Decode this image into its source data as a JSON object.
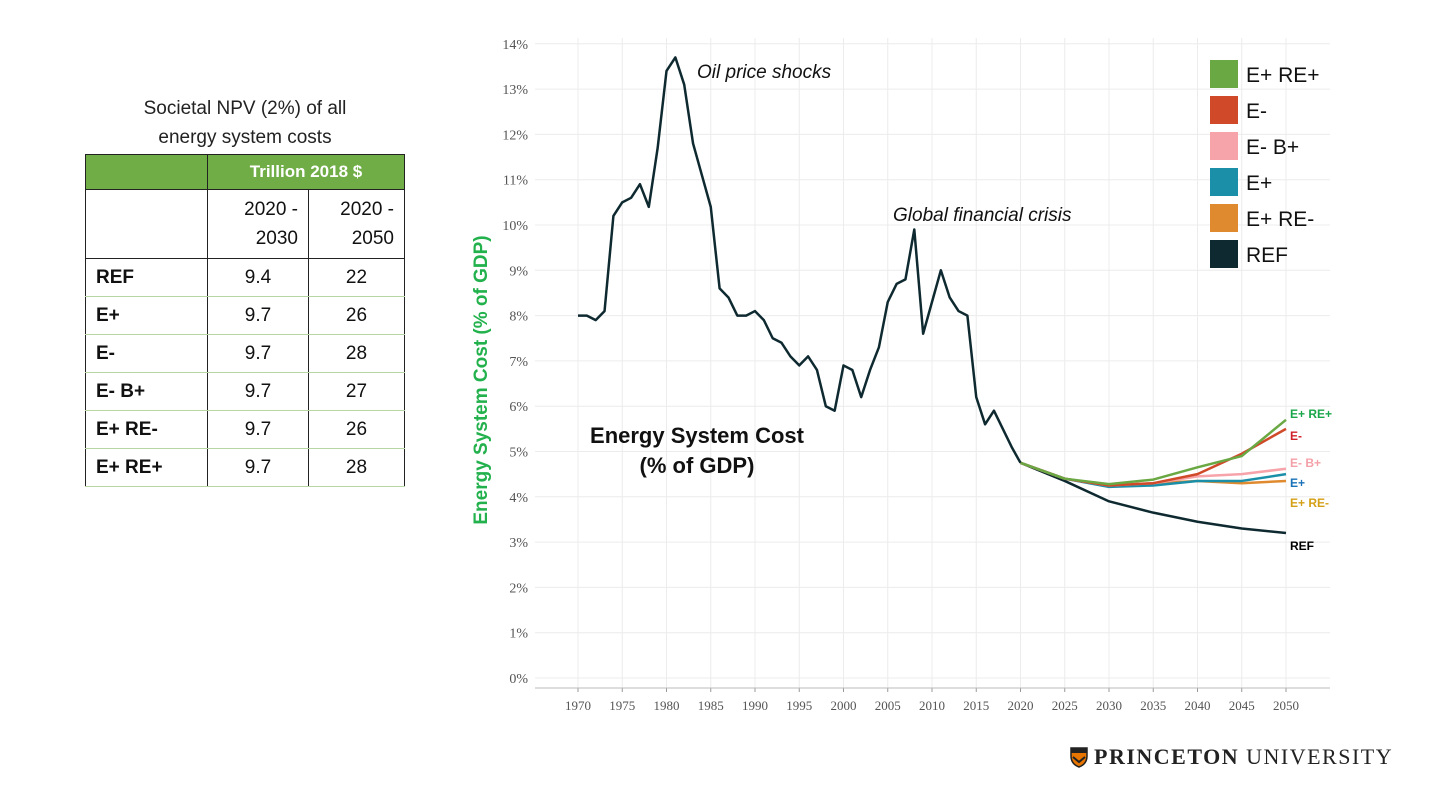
{
  "table": {
    "title_line1": "Societal NPV (2%) of all",
    "title_line2": "energy system costs",
    "unit_header": "Trillion 2018 $",
    "periods": [
      "2020 -\n2030",
      "2020 -\n2050"
    ],
    "rows": [
      {
        "scenario": "REF",
        "v2030": "9.4",
        "v2050": "22"
      },
      {
        "scenario": "E+",
        "v2030": "9.7",
        "v2050": "26"
      },
      {
        "scenario": "E-",
        "v2030": "9.7",
        "v2050": "28"
      },
      {
        "scenario": "E- B+",
        "v2030": "9.7",
        "v2050": "27"
      },
      {
        "scenario": "E+ RE-",
        "v2030": "9.7",
        "v2050": "26"
      },
      {
        "scenario": "E+ RE+",
        "v2030": "9.7",
        "v2050": "28"
      }
    ],
    "header_color": "#70ad47"
  },
  "chart_data": {
    "type": "line",
    "ylabel": "Energy System Cost (% of GDP)",
    "inner_title": "Energy System Cost\n(% of GDP)",
    "annotations": [
      {
        "text": "Oil price shocks",
        "x": 1981,
        "y": 13.7
      },
      {
        "text": "Global financial crisis",
        "x": 2008,
        "y": 9.9
      }
    ],
    "xlim": [
      1965,
      2055
    ],
    "ylim": [
      0,
      14
    ],
    "x_ticks": [
      1970,
      1975,
      1980,
      1985,
      1990,
      1995,
      2000,
      2005,
      2010,
      2015,
      2020,
      2025,
      2030,
      2035,
      2040,
      2045,
      2050
    ],
    "y_ticks": [
      "0%",
      "1%",
      "2%",
      "3%",
      "4%",
      "5%",
      "6%",
      "7%",
      "8%",
      "9%",
      "10%",
      "11%",
      "12%",
      "13%",
      "14%"
    ],
    "grid": true,
    "legend_position": "top-right",
    "history": {
      "x": [
        1970,
        1971,
        1972,
        1973,
        1974,
        1975,
        1976,
        1977,
        1978,
        1979,
        1980,
        1981,
        1982,
        1983,
        1984,
        1985,
        1986,
        1987,
        1988,
        1989,
        1990,
        1991,
        1992,
        1993,
        1994,
        1995,
        1996,
        1997,
        1998,
        1999,
        2000,
        2001,
        2002,
        2003,
        2004,
        2005,
        2006,
        2007,
        2008,
        2009,
        2010,
        2011,
        2012,
        2013,
        2014,
        2015,
        2016,
        2017,
        2018,
        2019,
        2020
      ],
      "y": [
        8.0,
        8.0,
        7.9,
        8.1,
        10.2,
        10.5,
        10.6,
        10.9,
        10.4,
        11.7,
        13.4,
        13.7,
        13.1,
        11.8,
        11.1,
        10.4,
        8.6,
        8.4,
        8.0,
        8.0,
        8.1,
        7.9,
        7.5,
        7.4,
        7.1,
        6.9,
        7.1,
        6.8,
        6.0,
        5.9,
        6.9,
        6.8,
        6.2,
        6.8,
        7.3,
        8.3,
        8.7,
        8.8,
        9.9,
        7.6,
        8.3,
        9.0,
        8.4,
        8.1,
        8.0,
        6.2,
        5.6,
        5.9,
        5.5,
        5.1,
        4.75
      ]
    },
    "projection_x": [
      2020,
      2025,
      2030,
      2035,
      2040,
      2045,
      2050
    ],
    "series": [
      {
        "name": "E+ RE+",
        "color": "#6aa843",
        "label_color": "#1aa64a",
        "values": [
          4.75,
          4.4,
          4.28,
          4.38,
          4.65,
          4.9,
          5.7
        ]
      },
      {
        "name": "E-",
        "color": "#d04a2a",
        "label_color": "#d0202a",
        "values": [
          4.75,
          4.4,
          4.25,
          4.3,
          4.5,
          4.95,
          5.5
        ]
      },
      {
        "name": "E- B+",
        "color": "#f7a3aa",
        "label_color": "#f4a0a8",
        "values": [
          4.75,
          4.4,
          4.25,
          4.3,
          4.45,
          4.5,
          4.62
        ]
      },
      {
        "name": "E+",
        "color": "#1b8fa8",
        "label_color": "#1a72b8",
        "values": [
          4.75,
          4.4,
          4.22,
          4.25,
          4.35,
          4.35,
          4.5
        ]
      },
      {
        "name": "E+ RE-",
        "color": "#e08a30",
        "label_color": "#d4a017",
        "values": [
          4.75,
          4.4,
          4.25,
          4.3,
          4.35,
          4.3,
          4.35
        ]
      },
      {
        "name": "REF",
        "color": "#0e2a30",
        "label_color": "#000000",
        "values": [
          4.75,
          4.35,
          3.9,
          3.65,
          3.45,
          3.3,
          3.2
        ]
      }
    ],
    "ylabel_color": "#22b14c"
  },
  "logo": {
    "bold": "PRINCETON",
    "light": "UNIVERSITY"
  }
}
